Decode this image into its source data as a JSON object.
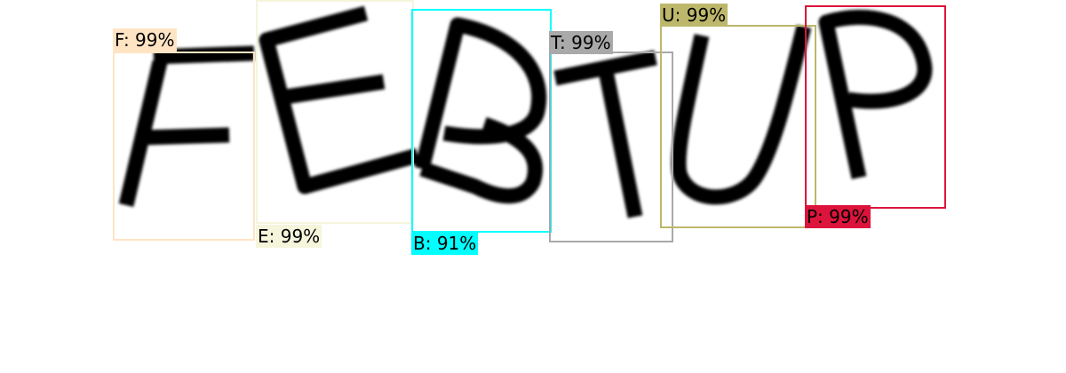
{
  "captcha": {
    "text": "FEBTUP",
    "stroke_color": "#000000"
  },
  "detections": [
    {
      "label": "F: 99%",
      "color": "#ffe4c4"
    },
    {
      "label": "E: 99%",
      "color": "#f5f5dc"
    },
    {
      "label": "B: 91%",
      "color": "#00ffff"
    },
    {
      "label": "T: 99%",
      "color": "#a9a9a9"
    },
    {
      "label": "U: 99%",
      "color": "#bdb76b"
    },
    {
      "label": "P: 99%",
      "color": "#dc143c"
    }
  ]
}
